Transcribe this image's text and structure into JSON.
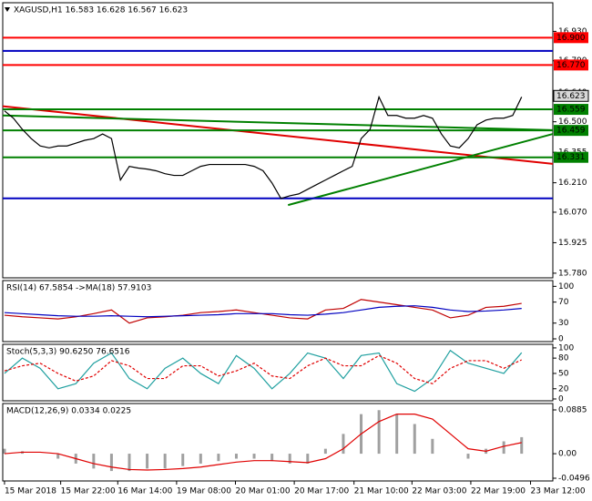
{
  "chart_data": [
    {
      "type": "line",
      "title": "XAGUSD,H1  16.583 16.628 16.567 16.623",
      "xlim": [
        -0.2,
        61.5
      ],
      "ylim": [
        15.758,
        17.066
      ],
      "yticks": [
        {
          "value": 16.93,
          "label": "16.930"
        },
        {
          "value": 16.79,
          "label": "16.790"
        },
        {
          "value": 16.64,
          "label": "16.640"
        },
        {
          "value": 16.5,
          "label": "16.500"
        },
        16.355,
        {
          "value": 16.21,
          "label": "16.210"
        },
        {
          "value": 16.07,
          "label": "16.070"
        },
        15.925,
        {
          "value": 15.78,
          "label": "15.780"
        }
      ],
      "x": [
        0,
        1,
        2,
        3,
        4,
        5,
        6,
        7,
        8,
        9,
        10,
        11,
        12,
        13,
        14,
        15,
        16,
        17,
        18,
        19,
        20,
        21,
        22,
        23,
        24,
        25,
        26,
        27,
        28,
        29,
        30,
        31,
        32,
        33,
        34,
        35,
        36,
        37,
        38,
        39,
        40,
        41,
        42,
        43,
        44,
        45,
        46,
        47,
        48,
        49,
        50,
        51,
        52,
        53,
        54,
        55,
        56,
        57,
        58
      ],
      "series": [
        {
          "color": "#000000",
          "values": [
            16.552,
            16.517,
            16.464,
            16.42,
            16.385,
            16.376,
            16.385,
            16.385,
            16.398,
            16.412,
            16.42,
            16.442,
            16.42,
            16.223,
            16.288,
            16.28,
            16.275,
            16.267,
            16.253,
            16.245,
            16.245,
            16.267,
            16.288,
            16.297,
            16.297,
            16.297,
            16.297,
            16.297,
            16.288,
            16.267,
            16.209,
            16.135,
            16.148,
            16.157,
            16.179,
            16.201,
            16.223,
            16.245,
            16.267,
            16.288,
            16.42,
            16.464,
            16.618,
            16.53,
            16.53,
            16.517,
            16.517,
            16.53,
            16.517,
            16.442,
            16.385,
            16.376,
            16.42,
            16.486,
            16.508,
            16.517,
            16.517,
            16.53,
            16.618
          ]
        }
      ],
      "hlines": [
        {
          "value": 16.9,
          "label": "16.900",
          "color": "#ff0000"
        },
        {
          "value": 16.837,
          "color": "#0000c0"
        },
        {
          "value": 16.77,
          "label": "16.770",
          "color": "#ff0000"
        },
        {
          "value": 16.559,
          "label": "16.559",
          "color": "#008000"
        },
        {
          "value": 16.459,
          "label": "16.459",
          "color": "#008000"
        },
        {
          "value": 16.331,
          "label": "16.331",
          "color": "#008000"
        },
        {
          "value": 16.136,
          "color": "#0000c0"
        }
      ],
      "last_price": {
        "value": 16.623,
        "label": "16.623"
      },
      "trendlines": [
        {
          "x": [
            -0.2,
            61.5
          ],
          "values": [
            16.574,
            16.3
          ],
          "color": "#e00000"
        },
        {
          "x": [
            -0.2,
            61.5
          ],
          "values": [
            16.53,
            16.46
          ],
          "color": "#008000"
        },
        {
          "x": [
            31.8,
            61.5
          ],
          "values": [
            16.104,
            16.442
          ],
          "color": "#008000"
        }
      ]
    },
    {
      "type": "line",
      "title": "RSI(14) 67.5854  ->MA(18) 57.9103",
      "xlim": [
        -0.2,
        61.5
      ],
      "ylim": [
        -5.2,
        111
      ],
      "yticks": [
        100,
        70,
        30,
        0
      ],
      "x": [
        0,
        2,
        4,
        6,
        8,
        10,
        12,
        14,
        16,
        18,
        20,
        22,
        24,
        26,
        28,
        30,
        32,
        34,
        36,
        38,
        40,
        42,
        44,
        46,
        48,
        50,
        52,
        54,
        56,
        58
      ],
      "series": [
        {
          "color": "#c00000",
          "values": [
            45,
            42,
            40,
            38,
            42,
            48,
            55,
            30,
            40,
            42,
            45,
            50,
            52,
            55,
            50,
            45,
            40,
            38,
            55,
            58,
            75,
            70,
            65,
            60,
            55,
            40,
            45,
            60,
            62,
            67.5854
          ]
        },
        {
          "color": "#0000c0",
          "values": [
            50,
            48,
            46,
            44,
            43,
            43,
            44,
            43,
            42,
            43,
            44,
            45,
            46,
            48,
            48,
            48,
            46,
            45,
            47,
            50,
            55,
            60,
            62,
            63,
            60,
            55,
            52,
            53,
            55,
            57.9103
          ]
        }
      ]
    },
    {
      "type": "line",
      "title": "Stoch(5,3,3) 90.6250 76.6516",
      "xlim": [
        -0.2,
        61.5
      ],
      "ylim": [
        -3.6,
        107
      ],
      "yticks": [
        100,
        80,
        50,
        20,
        0
      ],
      "x": [
        0,
        2,
        4,
        6,
        8,
        10,
        12,
        14,
        16,
        18,
        20,
        22,
        24,
        26,
        28,
        30,
        32,
        34,
        36,
        38,
        40,
        42,
        44,
        46,
        48,
        50,
        52,
        54,
        56,
        58
      ],
      "series": [
        {
          "color": "#20a0a0",
          "values": [
            50,
            80,
            60,
            20,
            30,
            70,
            90,
            40,
            20,
            60,
            80,
            50,
            30,
            85,
            60,
            20,
            50,
            90,
            80,
            40,
            85,
            90,
            30,
            15,
            40,
            95,
            70,
            60,
            50,
            90.625
          ]
        },
        {
          "color": "#e00000",
          "dashed": true,
          "values": [
            55,
            65,
            70,
            50,
            35,
            45,
            75,
            65,
            40,
            40,
            65,
            65,
            45,
            55,
            70,
            45,
            40,
            65,
            80,
            65,
            65,
            85,
            70,
            40,
            30,
            60,
            75,
            75,
            60,
            76.6516
          ]
        }
      ]
    },
    {
      "type": "combo",
      "title": "MACD(12,26,9) 0.0334 0.0225",
      "xlim": [
        -0.2,
        61.5
      ],
      "ylim": [
        -0.0551,
        0.1014
      ],
      "yticks": [
        0.0885,
        {
          "value": 0,
          "label": "0.00"
        },
        -0.0496
      ],
      "x": [
        0,
        2,
        4,
        6,
        8,
        10,
        12,
        14,
        16,
        18,
        20,
        22,
        24,
        26,
        28,
        30,
        32,
        34,
        36,
        38,
        40,
        42,
        44,
        46,
        48,
        50,
        52,
        54,
        56,
        58
      ],
      "series": [
        {
          "kind": "bar",
          "color": "#a0a0a0",
          "values": [
            0.01,
            0.005,
            0.0,
            -0.01,
            -0.02,
            -0.03,
            -0.035,
            -0.035,
            -0.03,
            -0.03,
            -0.025,
            -0.02,
            -0.015,
            -0.01,
            -0.01,
            -0.015,
            -0.02,
            -0.02,
            0.01,
            0.04,
            0.08,
            0.088,
            0.08,
            0.06,
            0.03,
            0.0,
            -0.01,
            0.01,
            0.025,
            0.0334
          ]
        },
        {
          "kind": "line",
          "color": "#e00000",
          "values": [
            0.0,
            0.003,
            0.003,
            0.0,
            -0.01,
            -0.02,
            -0.027,
            -0.032,
            -0.033,
            -0.032,
            -0.03,
            -0.027,
            -0.022,
            -0.017,
            -0.014,
            -0.014,
            -0.016,
            -0.018,
            -0.01,
            0.01,
            0.04,
            0.065,
            0.08,
            0.08,
            0.07,
            0.04,
            0.01,
            0.005,
            0.015,
            0.0225
          ]
        }
      ],
      "xticks": [
        {
          "value": 0,
          "label": "15 Mar 2018"
        },
        {
          "value": 6.3,
          "label": "15 Mar 22:00"
        },
        {
          "value": 12.7,
          "label": "16 Mar 14:00"
        },
        {
          "value": 19.3,
          "label": "19 Mar 08:00"
        },
        {
          "value": 25.9,
          "label": "20 Mar 01:00"
        },
        {
          "value": 32.5,
          "label": "20 Mar 17:00"
        },
        {
          "value": 39.2,
          "label": "21 Mar 10:00"
        },
        {
          "value": 45.7,
          "label": "22 Mar 03:00"
        },
        {
          "value": 52.3,
          "label": "22 Mar 19:00"
        },
        {
          "value": 59,
          "label": "23 Mar 12:00"
        }
      ]
    }
  ]
}
